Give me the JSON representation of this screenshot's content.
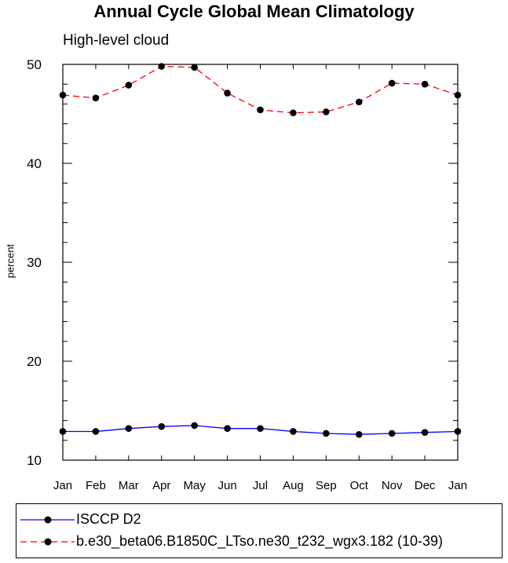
{
  "chart_data": {
    "type": "line",
    "title": "Annual Cycle Global Mean Climatology",
    "subtitle": "High-level cloud",
    "xlabel": "",
    "ylabel": "percent",
    "categories": [
      "Jan",
      "Feb",
      "Mar",
      "Apr",
      "May",
      "Jun",
      "Jul",
      "Aug",
      "Sep",
      "Oct",
      "Nov",
      "Dec",
      "Jan"
    ],
    "ylim": [
      10,
      50
    ],
    "yticks": [
      10,
      20,
      30,
      40,
      50
    ],
    "ytick_labels": [
      "10",
      "20",
      "30",
      "40",
      "50"
    ],
    "series": [
      {
        "name": "ISCCP D2",
        "color": "#0000ff",
        "line_style": "solid",
        "marker": "filled-circle",
        "values": [
          12.9,
          12.9,
          13.2,
          13.4,
          13.5,
          13.2,
          13.2,
          12.9,
          12.7,
          12.6,
          12.7,
          12.8,
          12.9
        ]
      },
      {
        "name": "b.e30_beta06.B1850C_LTso.ne30_t232_wgx3.182 (10-39)",
        "color": "#ff0000",
        "line_style": "dashed",
        "marker": "filled-circle",
        "values": [
          46.9,
          46.6,
          47.9,
          49.8,
          49.7,
          47.1,
          45.4,
          45.1,
          45.2,
          46.2,
          48.1,
          48.0,
          46.9
        ]
      }
    ],
    "grid": false,
    "legend_position": "bottom"
  }
}
